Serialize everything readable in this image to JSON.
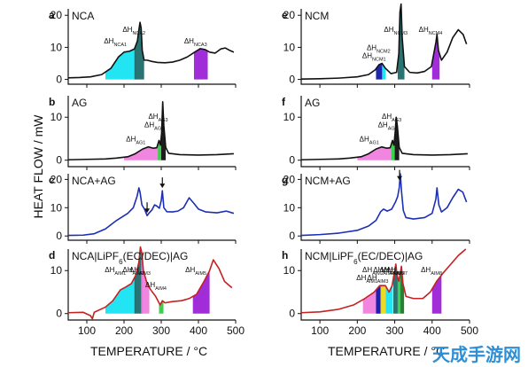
{
  "chart_data": {
    "type": "line",
    "ylabel": "HEAT FLOW / mW",
    "xlabel": "TEMPERATURE / °C",
    "xlim": [
      50,
      500
    ],
    "ylim": [
      0,
      20
    ],
    "x_ticks": [
      100,
      200,
      300,
      400,
      500
    ],
    "y_ticks": [
      0,
      10,
      20
    ],
    "panels": [
      {
        "letter": "a",
        "name": "NCA",
        "color": "#111111",
        "y_ticks": [
          0,
          10,
          20
        ],
        "points": [
          [
            50,
            0.5
          ],
          [
            80,
            0.6
          ],
          [
            110,
            0.8
          ],
          [
            140,
            1.5
          ],
          [
            165,
            3.5
          ],
          [
            185,
            7
          ],
          [
            200,
            8.5
          ],
          [
            215,
            8.8
          ],
          [
            228,
            9.5
          ],
          [
            236,
            12
          ],
          [
            240,
            15.5
          ],
          [
            243,
            17.8
          ],
          [
            246,
            16
          ],
          [
            249,
            9
          ],
          [
            254,
            6
          ],
          [
            262,
            6
          ],
          [
            275,
            5.6
          ],
          [
            290,
            5.3
          ],
          [
            310,
            5.2
          ],
          [
            330,
            5.4
          ],
          [
            350,
            6
          ],
          [
            370,
            7
          ],
          [
            390,
            8.5
          ],
          [
            405,
            9.6
          ],
          [
            418,
            9.3
          ],
          [
            430,
            8.5
          ],
          [
            445,
            8.2
          ],
          [
            460,
            9.5
          ],
          [
            472,
            9.8
          ],
          [
            485,
            9
          ],
          [
            495,
            8.5
          ]
        ],
        "peaks": [
          {
            "label": "ΔH",
            "sub": "NCA1",
            "color": "#17e3f2",
            "from": 150,
            "to": 232
          },
          {
            "label": "ΔH",
            "sub": "NCA2",
            "color": "#1d6b6b",
            "from": 228,
            "to": 254
          },
          {
            "label": "ΔH",
            "sub": "NCA3",
            "color": "#9b22d6",
            "from": 388,
            "to": 425
          }
        ]
      },
      {
        "letter": "b",
        "name": "AG",
        "color": "#111111",
        "y_ticks": [
          0,
          10
        ],
        "points": [
          [
            50,
            0.1
          ],
          [
            100,
            0.2
          ],
          [
            150,
            0.3
          ],
          [
            180,
            0.5
          ],
          [
            210,
            0.8
          ],
          [
            230,
            1.5
          ],
          [
            250,
            2.6
          ],
          [
            265,
            3.1
          ],
          [
            278,
            2.8
          ],
          [
            288,
            2.9
          ],
          [
            294,
            4.6
          ],
          [
            298,
            3.5
          ],
          [
            301,
            6.3
          ],
          [
            304,
            13.6
          ],
          [
            307,
            8
          ],
          [
            312,
            3
          ],
          [
            320,
            1.6
          ],
          [
            350,
            1.3
          ],
          [
            400,
            1.2
          ],
          [
            450,
            1.3
          ],
          [
            495,
            1.5
          ]
        ],
        "peaks": [
          {
            "label": "ΔH",
            "sub": "AG1",
            "color": "#ef7fde",
            "from": 200,
            "to": 292
          },
          {
            "label": "ΔH",
            "sub": "AG2",
            "color": "#33cc44",
            "from": 291,
            "to": 300
          },
          {
            "label": "ΔH",
            "sub": "AG3",
            "color": "#111111",
            "from": 300,
            "to": 312
          }
        ]
      },
      {
        "letter": "c",
        "name": "NCA+AG",
        "color": "#1c2fb5",
        "y_ticks": [
          0,
          10,
          20
        ],
        "points": [
          [
            50,
            0.2
          ],
          [
            90,
            0.3
          ],
          [
            120,
            0.8
          ],
          [
            150,
            2.5
          ],
          [
            180,
            5.5
          ],
          [
            210,
            8
          ],
          [
            225,
            10
          ],
          [
            235,
            14
          ],
          [
            240,
            17
          ],
          [
            243,
            15.5
          ],
          [
            248,
            11
          ],
          [
            255,
            9.5
          ],
          [
            262,
            7.2
          ],
          [
            268,
            8.2
          ],
          [
            275,
            9.2
          ],
          [
            282,
            11
          ],
          [
            288,
            10.6
          ],
          [
            295,
            9.8
          ],
          [
            300,
            12.5
          ],
          [
            303,
            16
          ],
          [
            307,
            10
          ],
          [
            315,
            8.6
          ],
          [
            330,
            8.5
          ],
          [
            345,
            8.8
          ],
          [
            360,
            10
          ],
          [
            375,
            13.5
          ],
          [
            388,
            11.5
          ],
          [
            400,
            9.5
          ],
          [
            420,
            8.5
          ],
          [
            450,
            8.2
          ],
          [
            475,
            8.8
          ],
          [
            495,
            8
          ]
        ],
        "arrows": [
          262,
          303
        ]
      },
      {
        "letter": "d",
        "name": "NCA|LiPF",
        "name_sub": "6",
        "name_tail": "(EC/DEC)|AG",
        "color": "#c42121",
        "y_ticks": [
          0,
          10
        ],
        "points": [
          [
            50,
            0.2
          ],
          [
            90,
            0.3
          ],
          [
            110,
            -0.5
          ],
          [
            115,
            -1.2
          ],
          [
            120,
            0.3
          ],
          [
            150,
            1.5
          ],
          [
            170,
            3
          ],
          [
            190,
            5.5
          ],
          [
            205,
            6.2
          ],
          [
            220,
            7
          ],
          [
            232,
            9
          ],
          [
            240,
            12
          ],
          [
            244,
            15.5
          ],
          [
            248,
            14
          ],
          [
            252,
            10
          ],
          [
            262,
            7
          ],
          [
            272,
            5.5
          ],
          [
            285,
            4
          ],
          [
            297,
            2
          ],
          [
            303,
            3
          ],
          [
            310,
            2.5
          ],
          [
            330,
            2.8
          ],
          [
            355,
            3
          ],
          [
            375,
            3.5
          ],
          [
            395,
            4.5
          ],
          [
            405,
            6
          ],
          [
            415,
            7.5
          ],
          [
            430,
            10
          ],
          [
            440,
            12.5
          ],
          [
            455,
            10.5
          ],
          [
            470,
            7.5
          ],
          [
            490,
            6
          ]
        ],
        "peaks": [
          {
            "label": "ΔH",
            "sub": "AIM1",
            "color": "#17e3f2",
            "from": 150,
            "to": 232
          },
          {
            "label": "ΔH",
            "sub": "AIM2",
            "color": "#1d6b6b",
            "from": 228,
            "to": 250
          },
          {
            "label": "ΔH",
            "sub": "AIM3",
            "color": "#ef7fde",
            "from": 246,
            "to": 268
          },
          {
            "label": "ΔH",
            "sub": "AIM4",
            "color": "#33cc44",
            "from": 294,
            "to": 306
          },
          {
            "label": "ΔH",
            "sub": "AIM5",
            "color": "#9b22d6",
            "from": 385,
            "to": 430
          }
        ]
      },
      {
        "letter": "e",
        "name": "NCM",
        "color": "#111111",
        "y_ticks": [
          0,
          10,
          20
        ],
        "points": [
          [
            50,
            0.1
          ],
          [
            100,
            0.2
          ],
          [
            150,
            0.4
          ],
          [
            200,
            0.8
          ],
          [
            230,
            1.5
          ],
          [
            248,
            3
          ],
          [
            258,
            4.6
          ],
          [
            266,
            5
          ],
          [
            275,
            3.5
          ],
          [
            290,
            1.8
          ],
          [
            305,
            2.2
          ],
          [
            311,
            8
          ],
          [
            314,
            21
          ],
          [
            317,
            23.5
          ],
          [
            320,
            13
          ],
          [
            326,
            4
          ],
          [
            340,
            2.2
          ],
          [
            360,
            2
          ],
          [
            380,
            2.5
          ],
          [
            398,
            4
          ],
          [
            410,
            11.5
          ],
          [
            413,
            14
          ],
          [
            417,
            9
          ],
          [
            425,
            6
          ],
          [
            440,
            8.5
          ],
          [
            455,
            13
          ],
          [
            470,
            15.5
          ],
          [
            483,
            14
          ],
          [
            492,
            11
          ]
        ],
        "peaks": [
          {
            "label": "ΔH",
            "sub": "NCM1",
            "color": "#111aa8",
            "from": 250,
            "to": 268
          },
          {
            "label": "ΔH",
            "sub": "NCM2",
            "color": "#17e3f2",
            "from": 266,
            "to": 276
          },
          {
            "label": "ΔH",
            "sub": "NCM3",
            "color": "#1d6b6b",
            "from": 308,
            "to": 326
          },
          {
            "label": "ΔH",
            "sub": "NCM4",
            "color": "#9b22d6",
            "from": 400,
            "to": 420
          }
        ]
      },
      {
        "letter": "f",
        "name": "AG",
        "color": "#111111",
        "y_ticks": [
          0,
          10
        ],
        "points": [
          [
            50,
            0.1
          ],
          [
            100,
            0.2
          ],
          [
            150,
            0.3
          ],
          [
            180,
            0.5
          ],
          [
            210,
            0.8
          ],
          [
            230,
            1.5
          ],
          [
            250,
            2.6
          ],
          [
            265,
            3.1
          ],
          [
            278,
            2.8
          ],
          [
            288,
            2.9
          ],
          [
            294,
            4.6
          ],
          [
            298,
            3.5
          ],
          [
            301,
            6.3
          ],
          [
            304,
            10
          ],
          [
            307,
            8
          ],
          [
            312,
            3
          ],
          [
            320,
            1.6
          ],
          [
            350,
            1.3
          ],
          [
            400,
            1.2
          ],
          [
            450,
            1.3
          ],
          [
            495,
            1.5
          ]
        ],
        "peaks": [
          {
            "label": "ΔH",
            "sub": "AG1",
            "color": "#ef7fde",
            "from": 200,
            "to": 292
          },
          {
            "label": "ΔH",
            "sub": "AG2",
            "color": "#33cc44",
            "from": 291,
            "to": 300
          },
          {
            "label": "ΔH",
            "sub": "AG3",
            "color": "#111111",
            "from": 300,
            "to": 312
          }
        ]
      },
      {
        "letter": "g",
        "name": "NCM+AG",
        "color": "#1c2fb5",
        "y_ticks": [
          0,
          10,
          20
        ],
        "points": [
          [
            50,
            0.2
          ],
          [
            100,
            0.5
          ],
          [
            150,
            1
          ],
          [
            200,
            2
          ],
          [
            230,
            3.5
          ],
          [
            250,
            5.5
          ],
          [
            262,
            8.5
          ],
          [
            270,
            9.5
          ],
          [
            280,
            8.8
          ],
          [
            292,
            9.5
          ],
          [
            302,
            12
          ],
          [
            308,
            14
          ],
          [
            312,
            17
          ],
          [
            315,
            22
          ],
          [
            318,
            16
          ],
          [
            323,
            9
          ],
          [
            330,
            6.5
          ],
          [
            350,
            6
          ],
          [
            380,
            6.5
          ],
          [
            400,
            8
          ],
          [
            410,
            13
          ],
          [
            413,
            17
          ],
          [
            418,
            11
          ],
          [
            425,
            8.5
          ],
          [
            440,
            10
          ],
          [
            455,
            13.5
          ],
          [
            470,
            16.5
          ],
          [
            482,
            15.5
          ],
          [
            492,
            12
          ]
        ],
        "arrows": [
          313
        ]
      },
      {
        "letter": "h",
        "name": "NCM|LiPF",
        "name_sub": "6",
        "name_tail": "(EC/DEC)|AG",
        "color": "#c42121",
        "y_ticks": [
          0,
          10
        ],
        "points": [
          [
            50,
            0.2
          ],
          [
            100,
            0.4
          ],
          [
            150,
            1
          ],
          [
            190,
            2
          ],
          [
            220,
            3.5
          ],
          [
            245,
            5
          ],
          [
            260,
            6.5
          ],
          [
            275,
            6.5
          ],
          [
            285,
            5
          ],
          [
            293,
            6.5
          ],
          [
            298,
            9
          ],
          [
            303,
            11.5
          ],
          [
            306,
            9
          ],
          [
            311,
            7.5
          ],
          [
            318,
            11
          ],
          [
            322,
            7
          ],
          [
            330,
            4
          ],
          [
            350,
            3.5
          ],
          [
            375,
            3.5
          ],
          [
            395,
            5
          ],
          [
            412,
            7.5
          ],
          [
            430,
            9.5
          ],
          [
            450,
            11.5
          ],
          [
            470,
            13.5
          ],
          [
            490,
            15
          ]
        ],
        "peaks": [
          {
            "label": "ΔH",
            "sub": "AIM1",
            "color": "#ef7fde",
            "from": 215,
            "to": 265
          },
          {
            "label": "ΔH",
            "sub": "AIM2",
            "color": "#111aa8",
            "from": 250,
            "to": 262
          },
          {
            "label": "ΔH",
            "sub": "AIM3",
            "color": "#e8d820",
            "from": 262,
            "to": 276
          },
          {
            "label": "ΔH",
            "sub": "AIM4",
            "color": "#17e3f2",
            "from": 276,
            "to": 294
          },
          {
            "label": "ΔH",
            "sub": "AIM5",
            "color": "#1d6b6b",
            "from": 296,
            "to": 308
          },
          {
            "label": "ΔH",
            "sub": "AIM6",
            "color": "#33cc44",
            "from": 308,
            "to": 315
          },
          {
            "label": "ΔH",
            "sub": "AIM7",
            "color": "#1a7a2a",
            "from": 315,
            "to": 325
          },
          {
            "label": "ΔH",
            "sub": "AIM8",
            "color": "#9b22d6",
            "from": 400,
            "to": 425
          }
        ]
      }
    ]
  },
  "watermark": {
    "text": "天成手游网",
    "color": "#2e8fd6"
  }
}
